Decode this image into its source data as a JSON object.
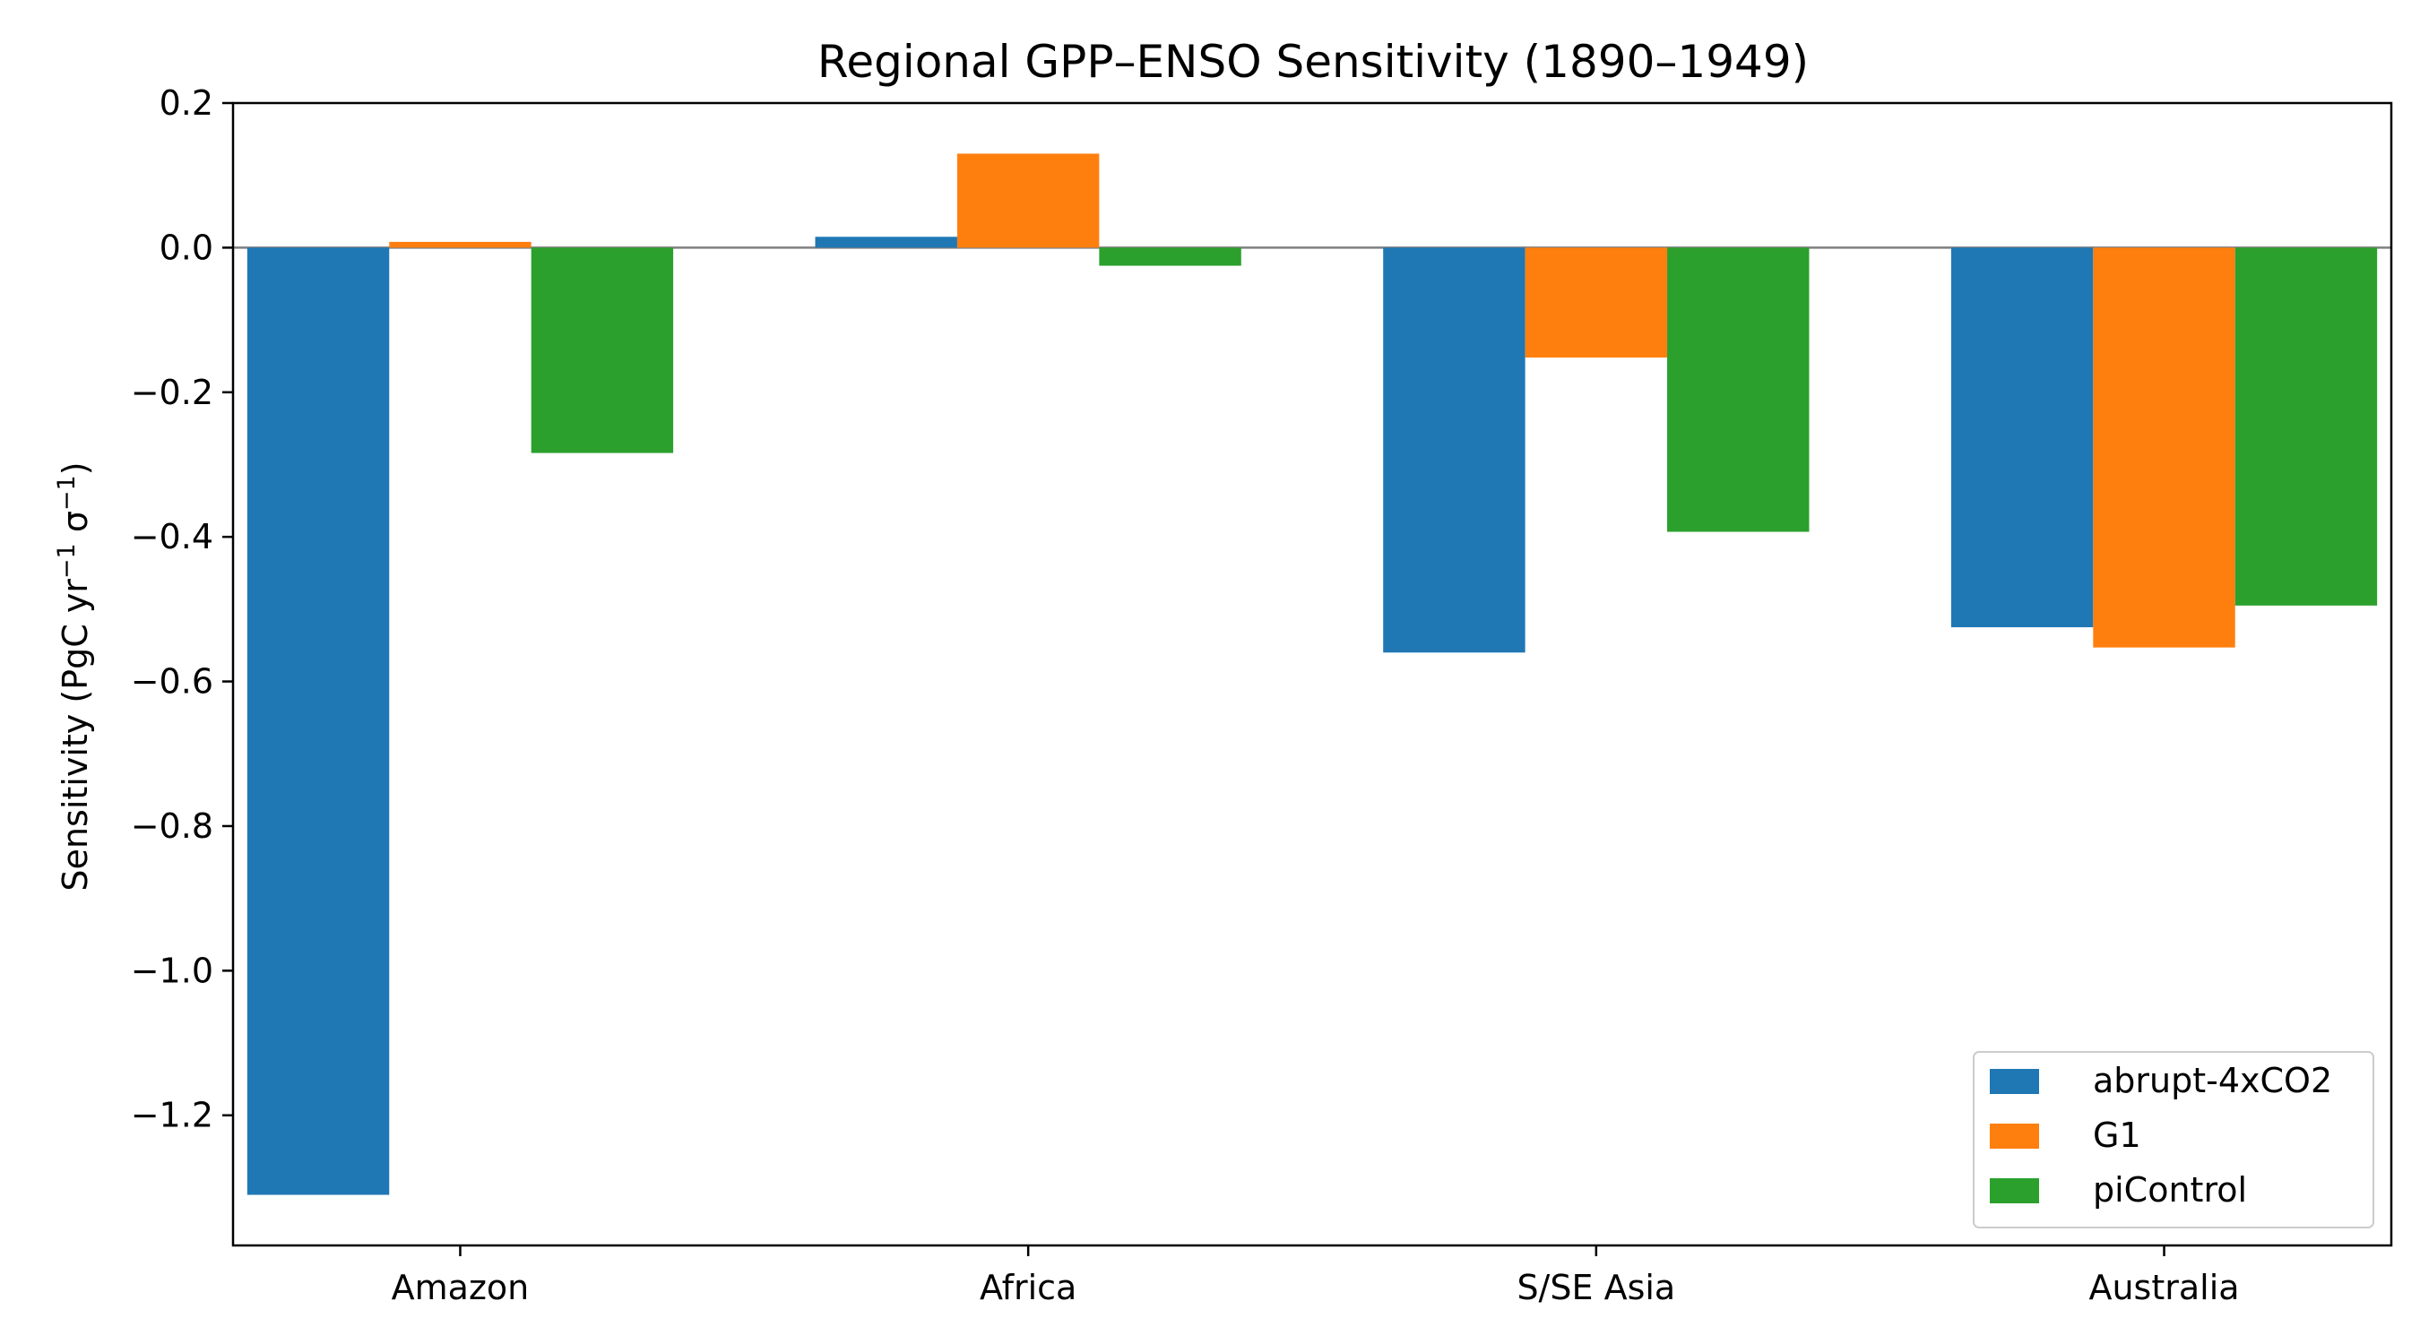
{
  "chart_data": {
    "type": "bar",
    "title": "Regional GPP–ENSO Sensitivity (1890–1949)",
    "xlabel": "",
    "ylabel_parts": {
      "prefix": "Sensitivity (PgC yr",
      "sup1": "−1",
      "middle": " σ",
      "sup2": "−1",
      "suffix": ")"
    },
    "categories": [
      "Amazon",
      "Africa",
      "S/SE Asia",
      "Australia"
    ],
    "series": [
      {
        "name": "abrupt-4xCO2",
        "color": "#1f77b4",
        "values": [
          -1.31,
          0.015,
          -0.56,
          -0.525
        ]
      },
      {
        "name": "G1",
        "color": "#ff7f0e",
        "values": [
          0.008,
          0.13,
          -0.152,
          -0.553
        ]
      },
      {
        "name": "piControl",
        "color": "#2ca02c",
        "values": [
          -0.284,
          -0.025,
          -0.393,
          -0.495
        ]
      }
    ],
    "ylim": [
      -1.38,
      0.2
    ],
    "yticks": [
      0.2,
      0.0,
      -0.2,
      -0.4,
      -0.6,
      -0.8,
      -1.0,
      -1.2
    ],
    "ytick_labels": [
      "0.2",
      "0.0",
      "−0.2",
      "−0.4",
      "−0.6",
      "−0.8",
      "−1.0",
      "−1.2"
    ],
    "zero_line": true,
    "grid": false,
    "legend_position": "lower-right"
  }
}
